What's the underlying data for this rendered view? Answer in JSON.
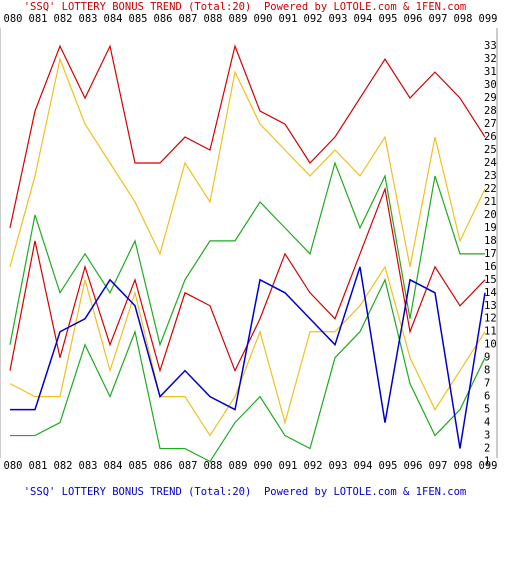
{
  "chart_data": {
    "type": "line",
    "title": "'SSQ' LOTTERY BONUS TREND (Total:20)  Powered by LOTOLE.com & 1FEN.com",
    "categories": [
      "080",
      "081",
      "082",
      "083",
      "084",
      "085",
      "086",
      "087",
      "088",
      "089",
      "090",
      "091",
      "092",
      "093",
      "094",
      "095",
      "096",
      "097",
      "098",
      "099"
    ],
    "series": [
      {
        "color": "#d40000",
        "values": [
          19,
          28,
          33,
          29,
          33,
          24,
          24,
          26,
          25,
          33,
          28,
          27,
          24,
          26,
          29,
          32,
          29,
          31,
          29,
          26
        ]
      },
      {
        "color": "#d40000",
        "values": [
          8,
          18,
          9,
          16,
          10,
          15,
          8,
          14,
          13,
          8,
          12,
          17,
          14,
          12,
          17,
          22,
          11,
          16,
          13,
          15
        ]
      },
      {
        "color": "#f0c020",
        "values": [
          16,
          23,
          32,
          27,
          24,
          21,
          17,
          24,
          21,
          31,
          27,
          25,
          23,
          25,
          23,
          26,
          16,
          26,
          18,
          22
        ]
      },
      {
        "color": "#f0c020",
        "values": [
          7,
          6,
          6,
          15,
          8,
          14,
          6,
          6,
          3,
          6,
          11,
          4,
          11,
          11,
          13,
          16,
          9,
          5,
          8,
          11
        ]
      },
      {
        "color": "#20aa20",
        "values": [
          10,
          20,
          14,
          17,
          14,
          18,
          10,
          15,
          18,
          18,
          21,
          19,
          17,
          24,
          19,
          23,
          12,
          23,
          17,
          17
        ]
      },
      {
        "color": "#20aa20",
        "values": [
          3,
          3,
          4,
          10,
          6,
          11,
          2,
          2,
          1,
          4,
          6,
          3,
          2,
          9,
          11,
          15,
          7,
          3,
          5,
          9
        ]
      },
      {
        "color": "#0000cc",
        "values": [
          5,
          5,
          11,
          12,
          15,
          13,
          6,
          8,
          6,
          5,
          15,
          14,
          12,
          10,
          16,
          4,
          15,
          14,
          2,
          14
        ]
      }
    ],
    "ylim": [
      0,
      34.4
    ],
    "yticks": [
      1,
      2,
      3,
      4,
      5,
      6,
      7,
      8,
      9,
      10,
      11,
      12,
      13,
      14,
      15,
      16,
      17,
      18,
      19,
      20,
      21,
      22,
      23,
      24,
      25,
      26,
      27,
      28,
      29,
      30,
      31,
      32,
      33
    ]
  }
}
